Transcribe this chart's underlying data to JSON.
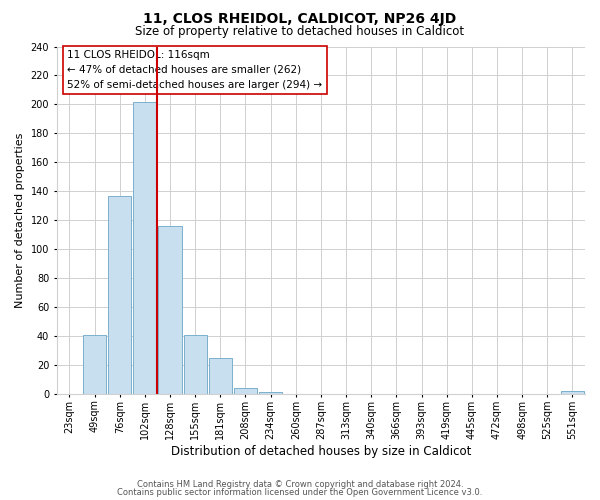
{
  "title": "11, CLOS RHEIDOL, CALDICOT, NP26 4JD",
  "subtitle": "Size of property relative to detached houses in Caldicot",
  "xlabel": "Distribution of detached houses by size in Caldicot",
  "ylabel": "Number of detached properties",
  "bar_labels": [
    "23sqm",
    "49sqm",
    "76sqm",
    "102sqm",
    "128sqm",
    "155sqm",
    "181sqm",
    "208sqm",
    "234sqm",
    "260sqm",
    "287sqm",
    "313sqm",
    "340sqm",
    "366sqm",
    "393sqm",
    "419sqm",
    "445sqm",
    "472sqm",
    "498sqm",
    "525sqm",
    "551sqm"
  ],
  "bar_values": [
    0,
    41,
    137,
    202,
    116,
    41,
    25,
    4,
    1,
    0,
    0,
    0,
    0,
    0,
    0,
    0,
    0,
    0,
    0,
    0,
    2
  ],
  "bar_color": "#c8dff0",
  "bar_edge_color": "#7ab0cc",
  "vline_color": "#cc0000",
  "ylim": [
    0,
    240
  ],
  "yticks": [
    0,
    20,
    40,
    60,
    80,
    100,
    120,
    140,
    160,
    180,
    200,
    220,
    240
  ],
  "annotation_title": "11 CLOS RHEIDOL: 116sqm",
  "annotation_line1": "← 47% of detached houses are smaller (262)",
  "annotation_line2": "52% of semi-detached houses are larger (294) →",
  "footer1": "Contains HM Land Registry data © Crown copyright and database right 2024.",
  "footer2": "Contains public sector information licensed under the Open Government Licence v3.0.",
  "background_color": "#ffffff",
  "grid_color": "#d0d0d0",
  "title_fontsize": 10,
  "subtitle_fontsize": 8.5,
  "ylabel_fontsize": 8,
  "xlabel_fontsize": 8.5,
  "tick_fontsize": 7,
  "annotation_fontsize": 7.5,
  "footer_fontsize": 6
}
